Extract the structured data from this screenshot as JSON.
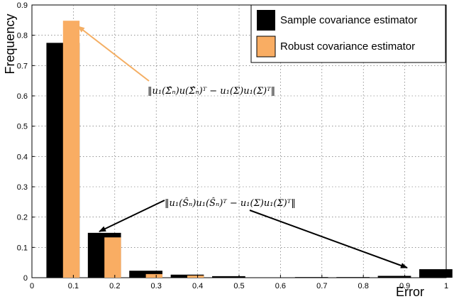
{
  "chart_data": {
    "type": "bar",
    "title": "",
    "xlabel": "Error",
    "ylabel": "Frequency",
    "xlim": [
      0,
      1
    ],
    "ylim": [
      0,
      0.9
    ],
    "grid": true,
    "legend_position": "top-right",
    "x_ticks": [
      "0",
      "0.1",
      "0.2",
      "0.3",
      "0.4",
      "0.5",
      "0.6",
      "0.7",
      "0.8",
      "0.9",
      "1"
    ],
    "y_ticks": [
      "0",
      "0.1",
      "0.2",
      "0.3",
      "0.4",
      "0.5",
      "0.6",
      "0.7",
      "0.8",
      "0.9"
    ],
    "x": [
      0.075,
      0.175,
      0.275,
      0.375,
      0.475,
      0.575,
      0.675,
      0.775,
      0.875,
      0.975
    ],
    "series": [
      {
        "name": "Sample covariance estimator",
        "color": "#000000",
        "values": [
          0.775,
          0.148,
          0.023,
          0.01,
          0.005,
          0.0,
          0.002,
          0.002,
          0.006,
          0.028
        ]
      },
      {
        "name": "Robust covariance estimator",
        "color": "#f9ad63",
        "values": [
          0.848,
          0.133,
          0.012,
          0.007,
          0.0,
          0.0,
          0.0,
          0.0,
          0.0,
          0.0
        ]
      }
    ],
    "annotations": [
      {
        "text": "‖u₁(Σ̂ₙ)u(Σ̂ₙ)ᵀ − u₁(Σ)u₁(Σ)ᵀ‖",
        "target_series": 1,
        "targets": [
          [
            0.1,
            0.848
          ]
        ]
      },
      {
        "text": "‖u₁(Ŝₙ)u₁(Ŝₙ)ᵀ − u₁(Σ)u₁(Σ)ᵀ‖",
        "target_series": 0,
        "targets": [
          [
            0.16,
            0.148
          ],
          [
            0.9,
            0.015
          ]
        ]
      }
    ]
  }
}
